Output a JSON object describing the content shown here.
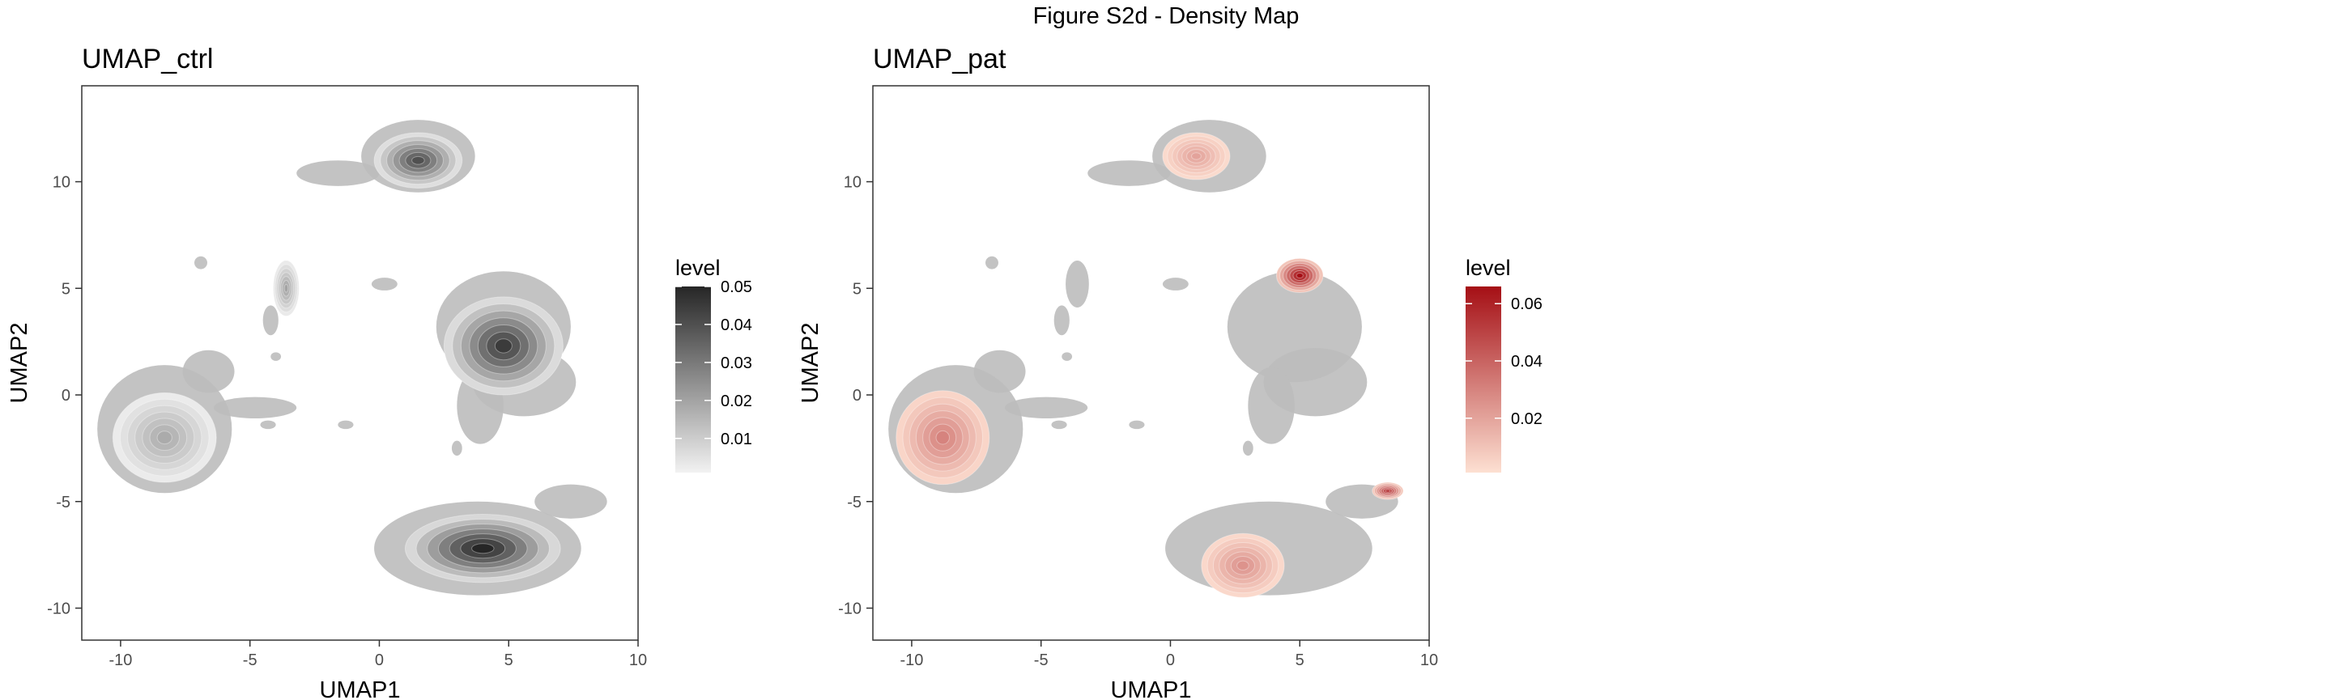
{
  "figure_title": "Figure S2d - Density Map",
  "chart_data": [
    {
      "type": "heatmap",
      "subtype": "2D density contour on UMAP embedding",
      "title": "UMAP_ctrl",
      "xlabel": "UMAP1",
      "ylabel": "UMAP2",
      "xlim": [
        -11.5,
        10
      ],
      "ylim": [
        -11.5,
        14.5
      ],
      "xticks": [
        -10,
        -5,
        0,
        5,
        10
      ],
      "xtick_labels": [
        "-10",
        "-5",
        "0",
        "5",
        "10"
      ],
      "yticks": [
        -10,
        -5,
        0,
        5,
        10
      ],
      "ytick_labels": [
        "-10",
        "-5",
        "0",
        "5",
        "10"
      ],
      "grid": false,
      "legend": {
        "title": "level",
        "position": "right",
        "range": [
          0.001,
          0.05
        ],
        "ticks": [
          0.01,
          0.02,
          0.03,
          0.04,
          0.05
        ],
        "tick_labels": [
          "0.01",
          "0.02",
          "0.03",
          "0.04",
          "0.05"
        ],
        "color_low": "#f2f2f2",
        "color_high": "#262626"
      },
      "background_cells_color": "#bdbdbd",
      "clusters": [
        {
          "name": "top",
          "x": 1.5,
          "y": 11,
          "sx": 1.7,
          "sy": 1.3,
          "peak": 0.04
        },
        {
          "name": "right-upper",
          "x": 4.8,
          "y": 2.3,
          "sx": 2.3,
          "sy": 2.3,
          "peak": 0.045
        },
        {
          "name": "left",
          "x": -8.3,
          "y": -2,
          "sx": 2.0,
          "sy": 2.1,
          "peak": 0.018
        },
        {
          "name": "bottom-right",
          "x": 4,
          "y": -7.2,
          "sx": 3.0,
          "sy": 1.6,
          "peak": 0.05
        },
        {
          "name": "small-mid",
          "x": -3.6,
          "y": 5,
          "sx": 0.5,
          "sy": 1.3,
          "peak": 0.02
        }
      ]
    },
    {
      "type": "heatmap",
      "subtype": "2D density contour on UMAP embedding",
      "title": "UMAP_pat",
      "xlabel": "UMAP1",
      "ylabel": "UMAP2",
      "xlim": [
        -11.5,
        10
      ],
      "ylim": [
        -11.5,
        14.5
      ],
      "xticks": [
        -10,
        -5,
        0,
        5,
        10
      ],
      "xtick_labels": [
        "-10",
        "-5",
        "0",
        "5",
        "10"
      ],
      "yticks": [
        -10,
        -5,
        0,
        5,
        10
      ],
      "ytick_labels": [
        "-10",
        "-5",
        "0",
        "5",
        "10"
      ],
      "grid": false,
      "legend": {
        "title": "level",
        "position": "right",
        "range": [
          0.001,
          0.066
        ],
        "ticks": [
          0.02,
          0.04,
          0.06
        ],
        "tick_labels": [
          "0.02",
          "0.04",
          "0.06"
        ],
        "color_low": "#fde0d2",
        "color_high": "#a50f15"
      },
      "background_cells_color": "#bdbdbd",
      "clusters": [
        {
          "name": "top",
          "x": 1,
          "y": 11.2,
          "sx": 1.3,
          "sy": 1.1,
          "peak": 0.02
        },
        {
          "name": "right-upper",
          "x": 5,
          "y": 5.6,
          "sx": 0.9,
          "sy": 0.8,
          "peak": 0.066
        },
        {
          "name": "left",
          "x": -8.8,
          "y": -2,
          "sx": 1.8,
          "sy": 2.2,
          "peak": 0.03
        },
        {
          "name": "bottom-right-tip",
          "x": 8.4,
          "y": -4.5,
          "sx": 0.6,
          "sy": 0.4,
          "peak": 0.055
        },
        {
          "name": "bottom-right",
          "x": 2.8,
          "y": -8,
          "sx": 1.6,
          "sy": 1.5,
          "peak": 0.025
        }
      ]
    }
  ]
}
